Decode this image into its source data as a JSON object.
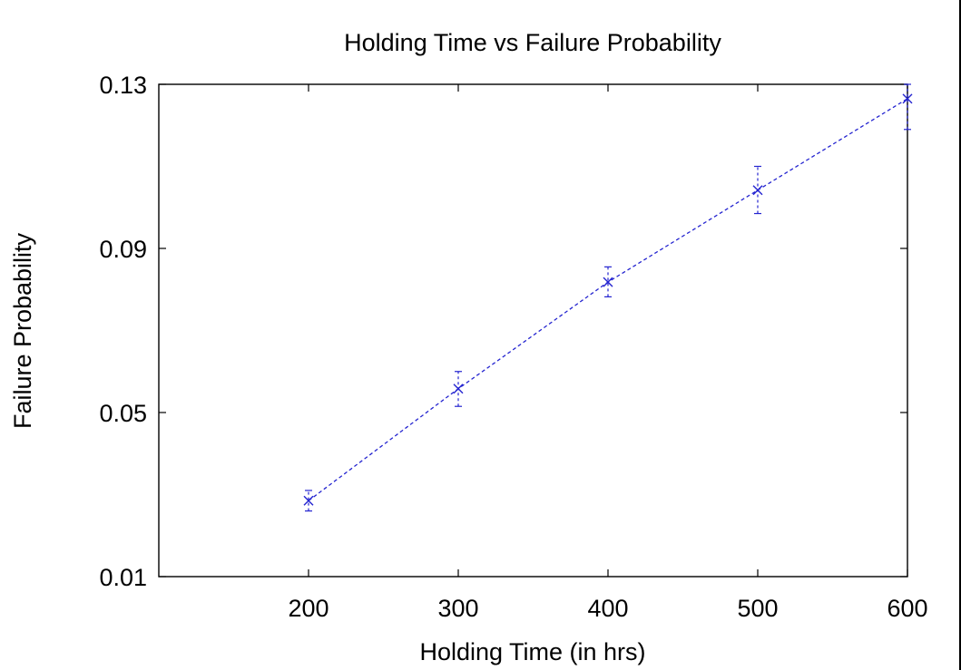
{
  "chart_data": {
    "type": "line",
    "title": "Holding Time vs Failure Probability",
    "xlabel": "Holding Time (in hrs)",
    "ylabel": "Failure Probability",
    "xlim": [
      100,
      600
    ],
    "ylim": [
      0.01,
      0.13
    ],
    "x_ticks": [
      200,
      300,
      400,
      500,
      600
    ],
    "y_ticks": [
      0.01,
      0.05,
      0.09,
      0.13
    ],
    "x_tick_labels": [
      "200",
      "300",
      "400",
      "500",
      "600"
    ],
    "y_tick_labels": [
      "0.01",
      "0.05",
      "0.09",
      "0.13"
    ],
    "grid": false,
    "legend": "none",
    "series": [
      {
        "color": "#2424d0",
        "marker": "x",
        "line_style": "dashed",
        "points": [
          {
            "x": 200,
            "y": 0.0285,
            "y_low": 0.026,
            "y_high": 0.031
          },
          {
            "x": 300,
            "y": 0.0558,
            "y_low": 0.0515,
            "y_high": 0.06
          },
          {
            "x": 400,
            "y": 0.0818,
            "y_low": 0.0782,
            "y_high": 0.0855
          },
          {
            "x": 500,
            "y": 0.1042,
            "y_low": 0.0985,
            "y_high": 0.11
          },
          {
            "x": 600,
            "y": 0.1265,
            "y_low": 0.119,
            "y_high": 0.13
          }
        ]
      }
    ]
  }
}
